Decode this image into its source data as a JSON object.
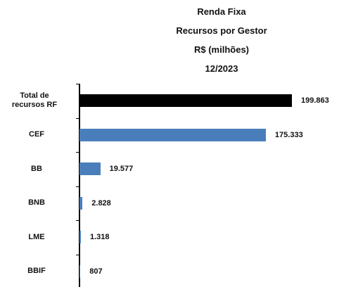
{
  "chart_data": {
    "type": "barh",
    "title": [
      "Renda Fixa",
      "Recursos por Gestor",
      "R$ (milhões)",
      "12/2023"
    ],
    "categories": [
      "Total de recursos RF",
      "CEF",
      "BB",
      "BNB",
      "LME",
      "BBIF"
    ],
    "values": [
      199863,
      175333,
      19577,
      2828,
      1318,
      807
    ],
    "value_labels": [
      "199.863",
      "175.333",
      "19.577",
      "2.828",
      "1.318",
      "807"
    ],
    "colors": [
      "#000000",
      "#4a7ebb",
      "#4a7ebb",
      "#4a7ebb",
      "#4a7ebb",
      "#4a7ebb"
    ]
  }
}
